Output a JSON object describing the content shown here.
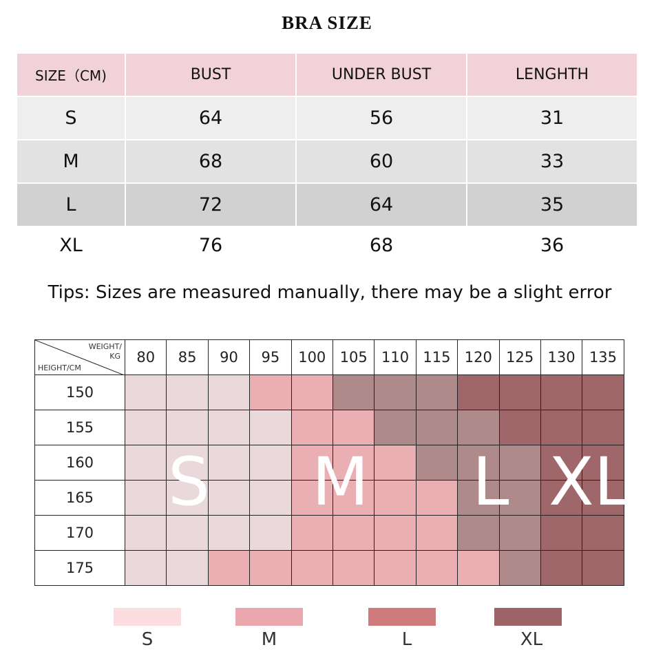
{
  "title": "BRA  SIZE",
  "size_table": {
    "headers": [
      "SIZE（CM)",
      "BUST",
      "UNDER BUST",
      "LENGHTH"
    ],
    "rows": [
      [
        "S",
        "64",
        "56",
        "31"
      ],
      [
        "M",
        "68",
        "60",
        "33"
      ],
      [
        "L",
        "72",
        "64",
        "35"
      ],
      [
        "XL",
        "76",
        "68",
        "36"
      ]
    ]
  },
  "tips": "Tips: Sizes are measured manually, there may be a slight error",
  "grid": {
    "corner_weight_label": "WEIGHT/\nKG",
    "corner_height_label": "HEIGHT/CM",
    "weights": [
      "80",
      "85",
      "90",
      "95",
      "100",
      "105",
      "110",
      "115",
      "120",
      "125",
      "130",
      "135"
    ],
    "heights": [
      "150",
      "155",
      "160",
      "165",
      "170",
      "175"
    ],
    "cells": [
      [
        "S",
        "S",
        "S",
        "M",
        "M",
        "L",
        "L",
        "L",
        "XL",
        "XL",
        "XL",
        "XL"
      ],
      [
        "S",
        "S",
        "S",
        "S",
        "M",
        "M",
        "L",
        "L",
        "L",
        "XL",
        "XL",
        "XL"
      ],
      [
        "S",
        "S",
        "S",
        "S",
        "M",
        "M",
        "M",
        "L",
        "L",
        "L",
        "XL",
        "XL"
      ],
      [
        "S",
        "S",
        "S",
        "S",
        "M",
        "M",
        "M",
        "M",
        "L",
        "L",
        "XL",
        "XL"
      ],
      [
        "S",
        "S",
        "S",
        "S",
        "M",
        "M",
        "M",
        "M",
        "L",
        "L",
        "XL",
        "XL"
      ],
      [
        "S",
        "S",
        "M",
        "M",
        "M",
        "M",
        "M",
        "M",
        "M",
        "L",
        "XL",
        "XL"
      ]
    ],
    "overlay_labels": [
      "S",
      "M",
      "L",
      "XL"
    ]
  },
  "legend": [
    {
      "label": "S",
      "color": "#fbdde0"
    },
    {
      "label": "M",
      "color": "#eaa8ae"
    },
    {
      "label": "L",
      "color": "#cf7a7d"
    },
    {
      "label": "XL",
      "color": "#9c6467"
    }
  ]
}
